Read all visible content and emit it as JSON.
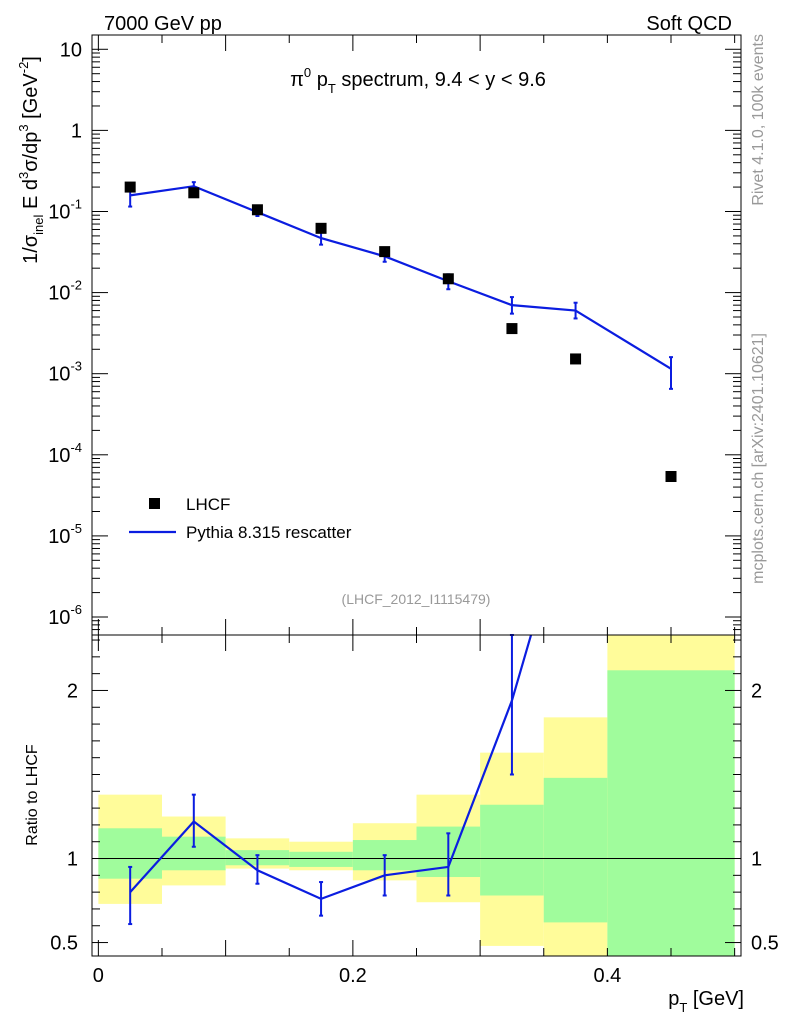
{
  "header": {
    "left": "7000 GeV pp",
    "right": "Soft QCD"
  },
  "side_labels": {
    "rivet": "Rivet 4.1.0,  100k events",
    "mcplots": "mcplots.cern.ch [arXiv:2401.10621]"
  },
  "colors": {
    "mc_line": "#0b1de0",
    "data_marker": "#000000",
    "band_inner": "#a0fc9c",
    "band_outer": "#fffc9a"
  },
  "chart_data": [
    {
      "type": "scatter",
      "panel": "main",
      "title_parts": {
        "pi": "π",
        "zero": "0",
        "p": " p",
        "t": "T",
        "rest": " spectrum, 9.4 < y < 9.6"
      },
      "ylabel_parts": {
        "a": "1/σ",
        "b": "inel",
        "c": " E d",
        "d": "3",
        "e": "σ/dp",
        "f": "3",
        "g": " [GeV",
        "h": "-2",
        "i": "]"
      },
      "yscale": "log",
      "ylim": [
        6e-07,
        15
      ],
      "xlim": [
        -0.005,
        0.505
      ],
      "yticks": [
        {
          "value": 1e-06,
          "base": "10",
          "exp": "-6"
        },
        {
          "value": 1e-05,
          "base": "10",
          "exp": "-5"
        },
        {
          "value": 0.0001,
          "base": "10",
          "exp": "-4"
        },
        {
          "value": 0.001,
          "base": "10",
          "exp": "-3"
        },
        {
          "value": 0.01,
          "base": "10",
          "exp": "-2"
        },
        {
          "value": 0.1,
          "base": "10",
          "exp": "-1"
        },
        {
          "value": 1,
          "base": "1",
          "exp": ""
        },
        {
          "value": 10,
          "base": "10",
          "exp": ""
        }
      ],
      "analysis_label": "(LHCF_2012_I1115479)",
      "legend": {
        "position": "bottom-left",
        "entries": [
          "LHCF",
          "Pythia 8.315 rescatter"
        ]
      },
      "series": [
        {
          "name": "LHCF",
          "style": "marker",
          "x": [
            0.025,
            0.075,
            0.125,
            0.175,
            0.225,
            0.275,
            0.325,
            0.375,
            0.45
          ],
          "y": [
            0.2,
            0.17,
            0.105,
            0.062,
            0.032,
            0.0148,
            0.0036,
            0.00152,
            5.4e-05
          ]
        },
        {
          "name": "Pythia 8.315 rescatter",
          "style": "line",
          "x": [
            0.025,
            0.075,
            0.125,
            0.175,
            0.225,
            0.275,
            0.325,
            0.375,
            0.45
          ],
          "y": [
            0.158,
            0.205,
            0.098,
            0.047,
            0.028,
            0.0138,
            0.007,
            0.006,
            0.00115
          ],
          "yerr_low": [
            0.115,
            0.18,
            0.088,
            0.039,
            0.024,
            0.011,
            0.0055,
            0.0048,
            0.00065
          ],
          "yerr_high": [
            0.2,
            0.23,
            0.11,
            0.056,
            0.033,
            0.0168,
            0.0088,
            0.0075,
            0.0016
          ]
        }
      ]
    },
    {
      "type": "line",
      "panel": "ratio",
      "ylabel": "Ratio to LHCF",
      "xlabel_parts": {
        "p": "p",
        "t": "T",
        "rest": " [GeV]"
      },
      "ylim": [
        0.42,
        2.33
      ],
      "xlim": [
        -0.005,
        0.505
      ],
      "yticks": [
        {
          "value": 0.5,
          "label": "0.5"
        },
        {
          "value": 1,
          "label": "1"
        },
        {
          "value": 2,
          "label": "2"
        }
      ],
      "xticks": [
        {
          "value": 0,
          "label": "0"
        },
        {
          "value": 0.2,
          "label": "0.2"
        },
        {
          "value": 0.4,
          "label": "0.4"
        }
      ],
      "bands": [
        {
          "xlo": 0.0,
          "xhi": 0.05,
          "inner": [
            0.88,
            1.18
          ],
          "outer": [
            0.73,
            1.38
          ]
        },
        {
          "xlo": 0.05,
          "xhi": 0.1,
          "inner": [
            0.93,
            1.13
          ],
          "outer": [
            0.84,
            1.25
          ]
        },
        {
          "xlo": 0.1,
          "xhi": 0.15,
          "inner": [
            0.96,
            1.05
          ],
          "outer": [
            0.94,
            1.12
          ]
        },
        {
          "xlo": 0.15,
          "xhi": 0.2,
          "inner": [
            0.95,
            1.04
          ],
          "outer": [
            0.93,
            1.1
          ]
        },
        {
          "xlo": 0.2,
          "xhi": 0.25,
          "inner": [
            0.93,
            1.11
          ],
          "outer": [
            0.87,
            1.21
          ]
        },
        {
          "xlo": 0.25,
          "xhi": 0.3,
          "inner": [
            0.89,
            1.19
          ],
          "outer": [
            0.74,
            1.38
          ]
        },
        {
          "xlo": 0.3,
          "xhi": 0.35,
          "inner": [
            0.78,
            1.32
          ],
          "outer": [
            0.48,
            1.63
          ]
        },
        {
          "xlo": 0.35,
          "xhi": 0.4,
          "inner": [
            0.62,
            1.48
          ],
          "outer": [
            0.42,
            1.84
          ]
        },
        {
          "xlo": 0.4,
          "xhi": 0.5,
          "inner": [
            0.42,
            2.12
          ],
          "outer": [
            0.42,
            2.33
          ]
        }
      ],
      "series": [
        {
          "name": "Pythia 8.315 rescatter / LHCF",
          "x": [
            0.025,
            0.075,
            0.125,
            0.175,
            0.225,
            0.275,
            0.325,
            0.34
          ],
          "y": [
            0.8,
            1.22,
            0.93,
            0.76,
            0.9,
            0.95,
            1.94,
            2.33
          ],
          "yerr_low": [
            0.61,
            1.07,
            0.85,
            0.66,
            0.78,
            0.78,
            1.5,
            null
          ],
          "yerr_high": [
            0.95,
            1.38,
            1.02,
            0.86,
            1.02,
            1.15,
            2.35,
            null
          ]
        }
      ]
    }
  ]
}
